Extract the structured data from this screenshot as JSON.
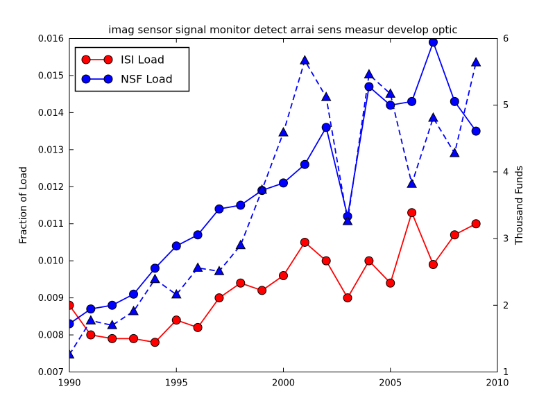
{
  "figure": {
    "background": "#ffffff",
    "axes_edge_color": "#000000"
  },
  "chart_data": {
    "type": "line",
    "title": "imag sensor signal monitor detect arrai sens measur develop optic",
    "xlabel": "",
    "ylabel_left": "Fraction of Load",
    "ylabel_right": "Thousand Funds",
    "xlim": [
      1990,
      2010
    ],
    "ylim_left": [
      0.007,
      0.016
    ],
    "ylim_right": [
      1,
      6
    ],
    "xticks": [
      1990,
      1995,
      2000,
      2005,
      2010
    ],
    "xtick_labels": [
      "1990",
      "1995",
      "2000",
      "2005",
      "2010"
    ],
    "yticks_left": [
      0.007,
      0.008,
      0.009,
      0.01,
      0.011,
      0.012,
      0.013,
      0.014,
      0.015,
      0.016
    ],
    "ytick_labels_left": [
      "0.007",
      "0.008",
      "0.009",
      "0.010",
      "0.011",
      "0.012",
      "0.013",
      "0.014",
      "0.015",
      "0.016"
    ],
    "yticks_right": [
      1,
      2,
      3,
      4,
      5,
      6
    ],
    "ytick_labels_right": [
      "1",
      "2",
      "3",
      "4",
      "5",
      "6"
    ],
    "grid": false,
    "x": [
      1990,
      1991,
      1992,
      1993,
      1994,
      1995,
      1996,
      1997,
      1998,
      1999,
      2000,
      2001,
      2002,
      2003,
      2004,
      2005,
      2006,
      2007,
      2008,
      2009
    ],
    "series": [
      {
        "name": "ISI Load",
        "axis": "left",
        "color": "#ff0000",
        "linestyle": "solid",
        "marker": "circle",
        "in_legend": true,
        "values": [
          0.0088,
          0.008,
          0.0079,
          0.0079,
          0.0078,
          0.0084,
          0.0082,
          0.009,
          0.0094,
          0.0092,
          0.0096,
          0.0105,
          0.01,
          0.009,
          0.01,
          0.0094,
          0.0113,
          0.0099,
          0.0107,
          0.011
        ]
      },
      {
        "name": "NSF Load",
        "axis": "left",
        "color": "#0000ff",
        "linestyle": "solid",
        "marker": "circle",
        "in_legend": true,
        "values": [
          0.0083,
          0.0087,
          0.0088,
          0.0091,
          0.0098,
          0.0104,
          0.0107,
          0.0114,
          0.0115,
          0.0119,
          0.0121,
          0.0126,
          0.0136,
          0.0112,
          0.0147,
          0.0142,
          0.0143,
          0.0159,
          0.0143,
          0.0135
        ]
      },
      {
        "name": "",
        "axis": "right",
        "color": "#0000ff",
        "linestyle": "dashed",
        "marker": "triangle",
        "in_legend": false,
        "values": [
          1.26,
          1.77,
          1.7,
          1.91,
          2.39,
          2.16,
          2.56,
          2.51,
          2.9,
          3.73,
          4.59,
          5.67,
          5.12,
          3.26,
          5.46,
          5.17,
          3.82,
          4.81,
          4.28,
          5.64
        ]
      }
    ],
    "legend": {
      "position": "upper-left",
      "entries": [
        "ISI Load",
        "NSF Load"
      ]
    }
  }
}
